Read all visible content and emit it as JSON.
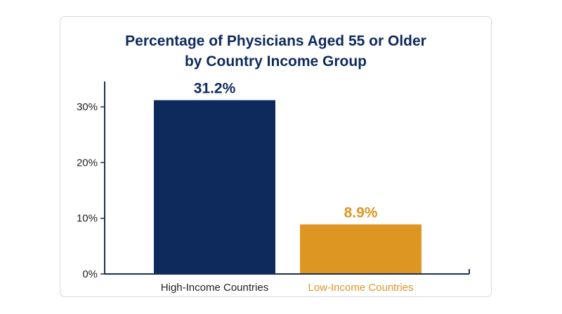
{
  "colors": {
    "title": "#0e2a5c",
    "axis": "#1a2f55",
    "tick_label": "#222222",
    "high_income": "#0e2a5c",
    "low_income": "#de9623"
  },
  "chart_data": {
    "type": "bar",
    "title_lines": [
      "Percentage of Physicians Aged 55 or Older",
      "by Country Income Group"
    ],
    "categories": [
      "High-Income Countries",
      "Low-Income Countries"
    ],
    "values": [
      31.2,
      8.9
    ],
    "value_labels": [
      "31.2%",
      "8.9%"
    ],
    "xlabel": "",
    "ylabel": "",
    "ylim": [
      0,
      35
    ],
    "yticks": [
      0,
      10,
      20,
      30
    ],
    "ytick_labels": [
      "0%",
      "10%",
      "20%",
      "30%"
    ],
    "grid": false,
    "legend": "none"
  }
}
